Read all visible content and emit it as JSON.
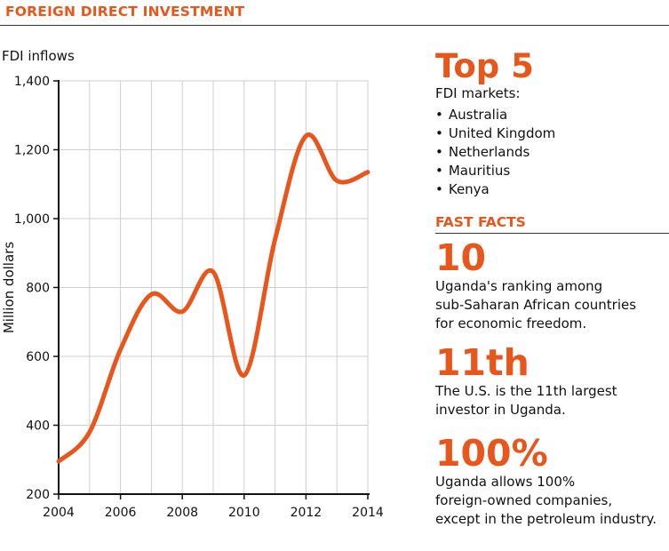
{
  "header": {
    "title": "FOREIGN DIRECT INVESTMENT"
  },
  "chart_data": {
    "type": "line",
    "subtitle": "FDI inflows",
    "ylabel": "Million dollars",
    "xlabel": "",
    "x": [
      2004,
      2005,
      2006,
      2007,
      2008,
      2009,
      2010,
      2011,
      2012,
      2013,
      2014
    ],
    "series": [
      {
        "values": [
          295,
          380,
          620,
          780,
          730,
          845,
          545,
          940,
          1240,
          1110,
          1135
        ]
      }
    ],
    "xticks": [
      "2004",
      "2006",
      "2008",
      "2010",
      "2012",
      "2014"
    ],
    "yticks": [
      "200",
      "400",
      "600",
      "800",
      "1,000",
      "1,200",
      "1,400"
    ],
    "xlim": [
      2004,
      2014
    ],
    "ylim": [
      200,
      1400
    ],
    "grid": true,
    "line_color": "#e8561c"
  },
  "sidebar": {
    "top5_heading": "Top 5",
    "top5_sub": "FDI markets:",
    "markets": [
      "Australia",
      "United Kingdom",
      "Netherlands",
      "Mauritius",
      "Kenya"
    ],
    "fast_facts_title": "FAST FACTS",
    "facts": [
      {
        "big": "10",
        "text": [
          "Uganda's ranking among",
          "sub-Saharan African countries",
          "for economic freedom."
        ]
      },
      {
        "big": "11th",
        "text": [
          "The U.S. is the 11th largest",
          "investor in Uganda."
        ]
      },
      {
        "big": "100%",
        "text": [
          "Uganda allows 100%",
          "foreign-owned companies,",
          "except in the petroleum industry."
        ]
      }
    ]
  },
  "colors": {
    "accent": "#e8561c",
    "grid": "#cfcfcf",
    "text": "#111111"
  }
}
